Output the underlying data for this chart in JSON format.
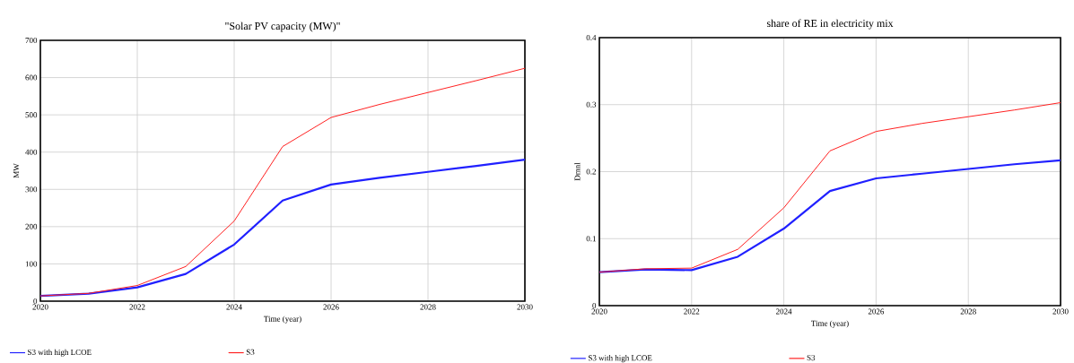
{
  "chart_data": [
    {
      "type": "line",
      "title": "\"Solar PV capacity (MW)\"",
      "xlabel": "Time (year)",
      "ylabel": "MW",
      "x": [
        2020,
        2021,
        2022,
        2023,
        2024,
        2025,
        2026,
        2027,
        2028,
        2029,
        2030
      ],
      "series": [
        {
          "name": "S3 with high LCOE",
          "color": "#2020ff",
          "values": [
            14,
            20,
            37,
            73,
            152,
            270,
            313,
            331,
            347,
            363,
            380
          ]
        },
        {
          "name": "S3",
          "color": "#ff2020",
          "values": [
            14,
            21,
            42,
            93,
            215,
            415,
            493,
            528,
            560,
            592,
            625
          ]
        }
      ],
      "xlim": [
        2020,
        2030
      ],
      "xticks": [
        2020,
        2022,
        2024,
        2026,
        2028,
        2030
      ],
      "ylim": [
        0,
        700
      ],
      "yticks": [
        0,
        100,
        200,
        300,
        400,
        500,
        600,
        700
      ],
      "grid": true,
      "legend": "bottom",
      "marker": "none",
      "line_style": "solid"
    },
    {
      "type": "line",
      "title": "share of RE in electricity mix",
      "xlabel": "Time (year)",
      "ylabel": "Dmnl",
      "x": [
        2020,
        2021,
        2022,
        2023,
        2024,
        2025,
        2026,
        2027,
        2028,
        2029,
        2030
      ],
      "series": [
        {
          "name": "S3 with high LCOE",
          "color": "#2020ff",
          "values": [
            0.05,
            0.054,
            0.053,
            0.073,
            0.115,
            0.171,
            0.19,
            0.197,
            0.204,
            0.211,
            0.217
          ]
        },
        {
          "name": "S3",
          "color": "#ff2020",
          "values": [
            0.05,
            0.055,
            0.056,
            0.084,
            0.146,
            0.231,
            0.26,
            0.272,
            0.282,
            0.292,
            0.303
          ]
        }
      ],
      "xlim": [
        2020,
        2030
      ],
      "xticks": [
        2020,
        2022,
        2024,
        2026,
        2028,
        2030
      ],
      "ylim": [
        0,
        0.4
      ],
      "yticks": [
        0,
        0.1,
        0.2,
        0.3,
        0.4
      ],
      "grid": true,
      "legend": "bottom",
      "marker": "none",
      "line_style": "solid"
    }
  ]
}
